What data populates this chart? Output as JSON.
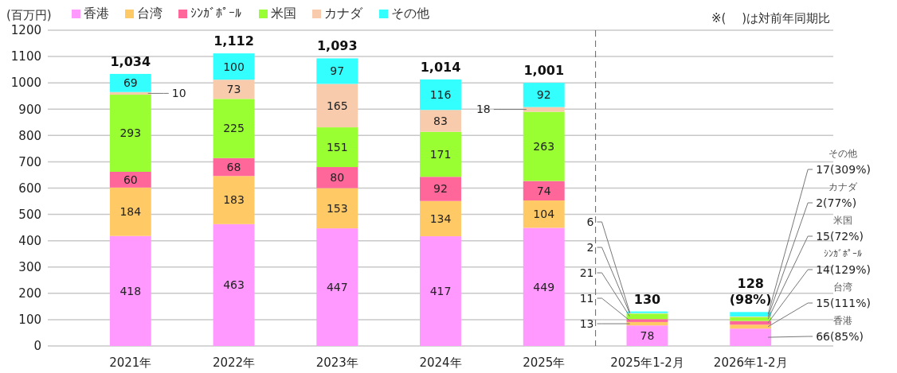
{
  "chart_data": {
    "type": "bar",
    "stacked": true,
    "ylabel": "(百万円)",
    "annotations": [
      "※(　 )は対前年同期比"
    ],
    "categories": [
      "2021年",
      "2022年",
      "2023年",
      "2024年",
      "2025年",
      "2025年1-2月",
      "2026年1-2月"
    ],
    "series": [
      {
        "name": "香港",
        "color": "#ff99ff",
        "values": [
          418,
          463,
          447,
          417,
          449,
          78,
          66
        ],
        "value_labels": [
          "418",
          "463",
          "447",
          "417",
          "449",
          "78",
          "66(85%)"
        ]
      },
      {
        "name": "台湾",
        "color": "#ffc966",
        "values": [
          184,
          183,
          153,
          134,
          104,
          13,
          15
        ],
        "value_labels": [
          "184",
          "183",
          "153",
          "134",
          "104",
          "13",
          "15(111%)"
        ]
      },
      {
        "name": "ｼﾝｶﾞﾎﾟｰﾙ",
        "color": "#ff6699",
        "values": [
          60,
          68,
          80,
          92,
          74,
          11,
          14
        ],
        "value_labels": [
          "60",
          "68",
          "80",
          "92",
          "74",
          "11",
          "14(129%)"
        ]
      },
      {
        "name": "米国",
        "color": "#99ff33",
        "values": [
          293,
          225,
          151,
          171,
          263,
          21,
          15
        ],
        "value_labels": [
          "293",
          "225",
          "151",
          "171",
          "263",
          "21",
          "15(72%)"
        ]
      },
      {
        "name": "カナダ",
        "color": "#f8cbad",
        "values": [
          10,
          73,
          165,
          83,
          18,
          2,
          2
        ],
        "value_labels": [
          "10",
          "73",
          "165",
          "83",
          "18",
          "2",
          "2(77%)"
        ]
      },
      {
        "name": "その他",
        "color": "#33ffff",
        "values": [
          69,
          100,
          97,
          116,
          92,
          6,
          17
        ],
        "value_labels": [
          "69",
          "100",
          "97",
          "116",
          "92",
          "6",
          "17(309%)"
        ]
      }
    ],
    "totals": [
      "1,034",
      "1,112",
      "1,093",
      "1,014",
      "1,001",
      "130",
      "128\n(98%)"
    ],
    "ylim": [
      0,
      1200
    ],
    "yticks": [
      0,
      100,
      200,
      300,
      400,
      500,
      600,
      700,
      800,
      900,
      1000,
      1100,
      1200
    ],
    "grid": "y",
    "legend": "top left"
  }
}
